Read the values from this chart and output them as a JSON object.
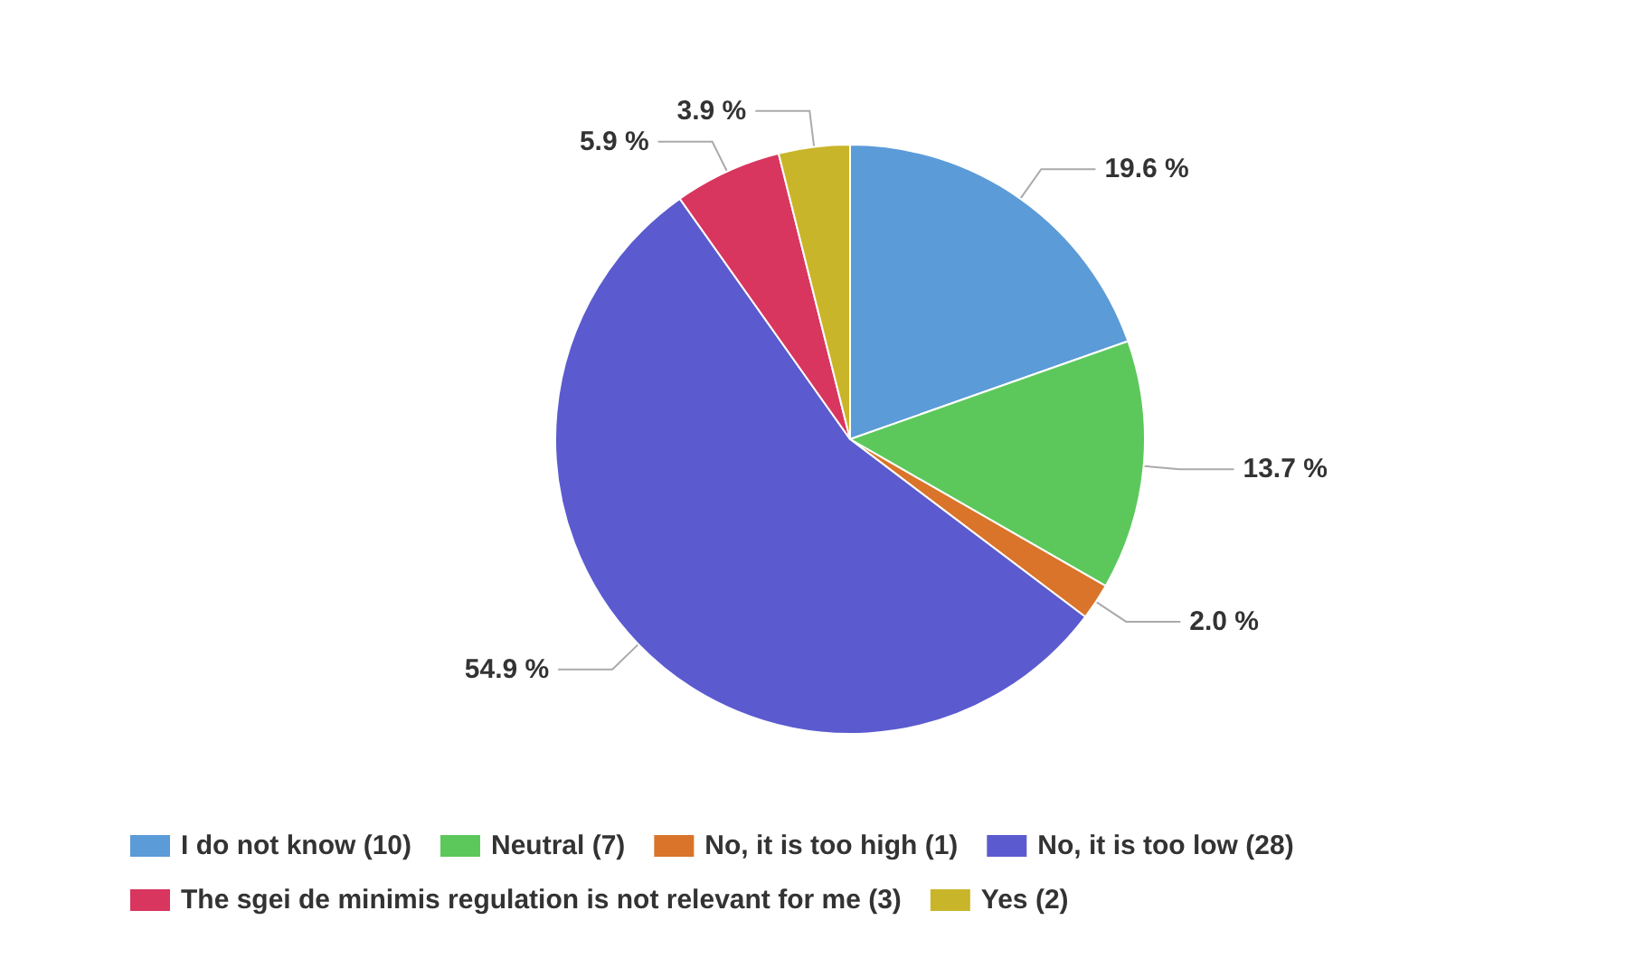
{
  "chart_data": {
    "type": "pie",
    "categories": [
      "I do not know (10)",
      "Neutral (7)",
      "No, it is too high (1)",
      "No, it is too low (28)",
      "The sgei de minimis regulation is not relevant for me (3)",
      "Yes (2)"
    ],
    "values": [
      19.6,
      13.7,
      2.0,
      54.9,
      5.9,
      3.9
    ],
    "value_labels": [
      "19.6 %",
      "13.7 %",
      "2.0 %",
      "54.9 %",
      "5.9 %",
      "3.9 %"
    ],
    "colors": [
      "#5b9bd8",
      "#5cc85c",
      "#d9742a",
      "#5b5bcf",
      "#d8365f",
      "#c9b52a"
    ],
    "legend": "bottom"
  }
}
